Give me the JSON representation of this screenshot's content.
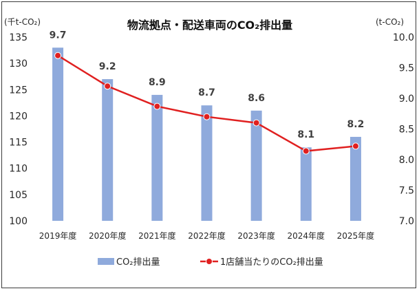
{
  "chart_data": {
    "type": "bar",
    "title": "物流拠点・配送車両のCO₂排出量",
    "left_unit": "(千t-CO₂)",
    "right_unit": "(t-CO₂)",
    "categories": [
      "2019年度",
      "2020年度",
      "2021年度",
      "2022年度",
      "2023年度",
      "2024年度",
      "2025年度"
    ],
    "left_ylim": [
      100,
      135
    ],
    "left_ticks": [
      "100",
      "105",
      "110",
      "115",
      "120",
      "125",
      "130",
      "135"
    ],
    "right_ylim": [
      7.0,
      10.0
    ],
    "right_ticks": [
      "7.0",
      "7.5",
      "8.0",
      "8.5",
      "9.0",
      "9.5",
      "10.0"
    ],
    "grid": false,
    "legend_position": "bottom",
    "series": [
      {
        "name": "CO₂排出量",
        "type": "bar",
        "axis": "left",
        "color": "#8FAADC",
        "values": [
          133,
          127,
          124,
          122,
          121,
          114,
          116
        ]
      },
      {
        "name": "1店舗当たりのCO₂排出量",
        "type": "line",
        "axis": "right",
        "color": "#E02020",
        "values": [
          9.7,
          9.2,
          8.87,
          8.7,
          8.6,
          8.14,
          8.22
        ],
        "labels": [
          "9.7",
          "9.2",
          "8.9",
          "8.7",
          "8.6",
          "8.1",
          "8.2"
        ]
      }
    ]
  }
}
